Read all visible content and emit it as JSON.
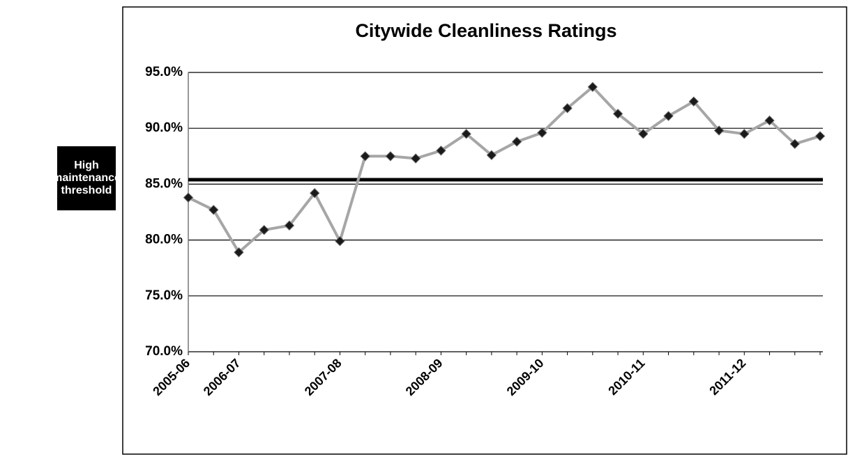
{
  "chart_data": {
    "type": "line",
    "title": "Citywide Cleanliness Ratings",
    "categories": [
      "2005-06",
      null,
      "2006-07",
      null,
      null,
      null,
      "2007-08",
      null,
      null,
      null,
      "2008-09",
      null,
      null,
      null,
      "2009-10",
      null,
      null,
      null,
      "2010-11",
      null,
      null,
      null,
      "2011-12",
      null,
      null,
      null
    ],
    "values": [
      83.8,
      82.7,
      78.9,
      80.9,
      81.3,
      84.2,
      79.9,
      87.5,
      87.5,
      87.3,
      88.0,
      89.5,
      87.6,
      88.8,
      89.6,
      91.8,
      93.7,
      91.3,
      89.5,
      91.1,
      92.4,
      89.8,
      89.5,
      90.7,
      88.6,
      89.3
    ],
    "color": "#a6a6a6",
    "marker_color": "#1a1a1a",
    "ylim": [
      70,
      95
    ],
    "yticks": [
      {
        "value": 70,
        "label": "70.0%"
      },
      {
        "value": 75,
        "label": "75.0%"
      },
      {
        "value": 80,
        "label": "80.0%"
      },
      {
        "value": 85,
        "label": "85.0%"
      },
      {
        "value": 90,
        "label": "90.0%"
      },
      {
        "value": 95,
        "label": "95.0%"
      }
    ],
    "grid": true,
    "threshold": {
      "label": "High maintenance threshold",
      "value": 85.4
    }
  }
}
